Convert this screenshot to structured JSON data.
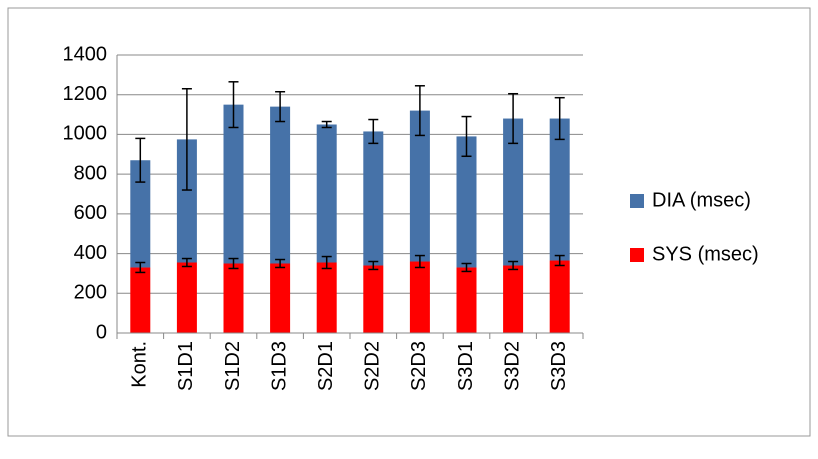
{
  "chart_data": {
    "type": "stacked_bar",
    "categories": [
      "Kont.",
      "S1D1",
      "S1D2",
      "S1D3",
      "S2D1",
      "S2D2",
      "S2D3",
      "S3D1",
      "S3D2",
      "S3D3"
    ],
    "series": [
      {
        "name": "SYS (msec)",
        "color": "#ff0000",
        "values": [
          330,
          355,
          350,
          350,
          355,
          340,
          360,
          330,
          340,
          365
        ],
        "errors": [
          25,
          20,
          25,
          20,
          30,
          20,
          30,
          20,
          20,
          25
        ]
      },
      {
        "name": "DIA (msec)",
        "color": "#4672a8",
        "values": [
          540,
          620,
          800,
          790,
          695,
          675,
          760,
          660,
          740,
          715
        ],
        "errors": [
          110,
          255,
          115,
          75,
          15,
          60,
          125,
          100,
          125,
          105
        ]
      }
    ],
    "ylim": [
      0,
      1400
    ],
    "yticks": [
      0,
      200,
      400,
      600,
      800,
      1000,
      1200,
      1400
    ],
    "grid": true,
    "legend": "right"
  }
}
